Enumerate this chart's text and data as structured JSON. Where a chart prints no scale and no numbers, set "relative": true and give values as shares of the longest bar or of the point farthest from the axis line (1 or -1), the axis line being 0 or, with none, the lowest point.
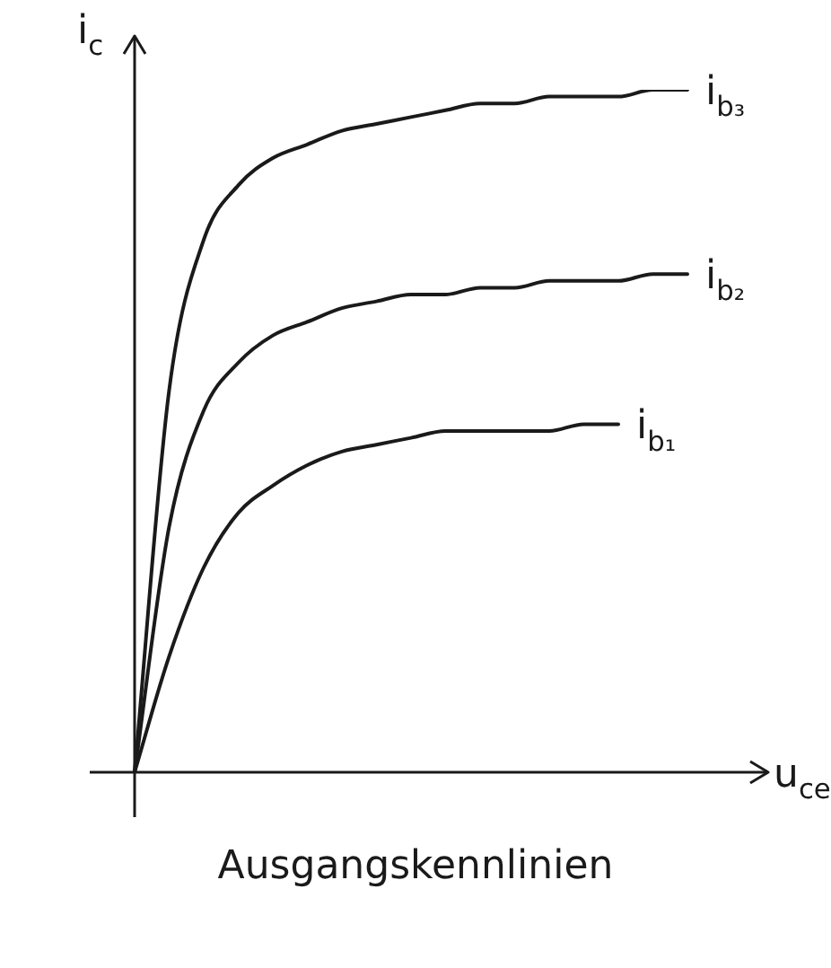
{
  "chart_data": {
    "type": "line",
    "title": "Ausgangskennlinien",
    "xlabel": "u$_{ce}$",
    "ylabel": "i$_{c}$",
    "relative": true,
    "legend": false,
    "grid": false,
    "marker": "none",
    "line_style": "solid",
    "categories": [
      null,
      null,
      null,
      null,
      null,
      null,
      null,
      null,
      null,
      null,
      null,
      null,
      null,
      null,
      null,
      null,
      null
    ],
    "series": [
      {
        "name": "i$_{b₃}$",
        "color": "#1a1a1a",
        "values": [
          0,
          0.56,
          0.78,
          0.86,
          0.9,
          0.92,
          0.94,
          0.95,
          0.96,
          0.97,
          0.98,
          0.98,
          0.99,
          0.99,
          0.99,
          1,
          1
        ]
      },
      {
        "name": "i$_{b₂}$",
        "color": "#1a1a1a",
        "values": [
          0,
          0.36,
          0.53,
          0.6,
          0.64,
          0.66,
          0.68,
          0.69,
          0.7,
          0.7,
          0.71,
          0.71,
          0.72,
          0.72,
          0.72,
          0.73,
          0.73
        ]
      },
      {
        "name": "i$_{b₁}$",
        "color": "#1a1a1a",
        "values": [
          0,
          0.17,
          0.3,
          0.38,
          0.42,
          0.45,
          0.47,
          0.48,
          0.49,
          0.5,
          0.5,
          0.5,
          0.5,
          0.51,
          0.51,
          null,
          null
        ]
      }
    ]
  }
}
